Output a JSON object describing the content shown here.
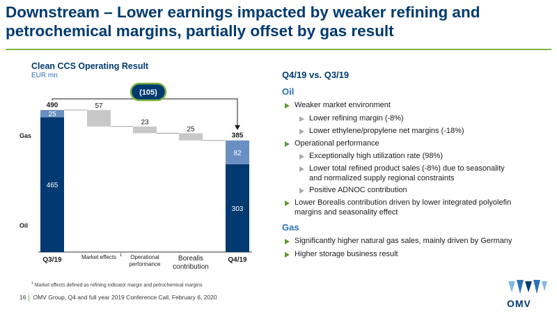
{
  "slide": {
    "title": "Downstream – Lower earnings impacted by weaker refining and petrochemical margins, partially offset by gas result"
  },
  "chart": {
    "title": "Clean CCS Operating Result",
    "unit": "EUR mn",
    "delta_label": "(105)",
    "start_total_label": "490",
    "end_total_label": "385",
    "side_label_gas": "Gas",
    "side_label_oil": "Oil",
    "colors": {
      "oil": "#003a70",
      "gas": "#6a8fc2",
      "delta": "#c8c8c8",
      "arrow": "#1a1a1a"
    }
  },
  "chart_data": {
    "type": "bar",
    "subtype": "waterfall",
    "title": "Clean CCS Operating Result",
    "ylabel": "EUR mn",
    "categories": [
      "Q3/19",
      "Market effects",
      "Operational performance",
      "Borealis contribution",
      "Q4/19"
    ],
    "category_sups": [
      "",
      "1",
      "",
      "",
      ""
    ],
    "totals": [
      {
        "category": "Q3/19",
        "oil": 465,
        "gas": 25,
        "total": 490
      },
      {
        "category": "Q4/19",
        "oil": 303,
        "gas": 82,
        "total": 385
      }
    ],
    "changes": [
      {
        "category": "Market effects",
        "value": -57,
        "label": "57"
      },
      {
        "category": "Operational performance",
        "value": -23,
        "label": "23"
      },
      {
        "category": "Borealis contribution",
        "value": -25,
        "label": "25"
      }
    ],
    "total_change": -105,
    "ylim": [
      0,
      490
    ]
  },
  "right": {
    "heading": "Q4/19 vs. Q3/19",
    "oil_label": "Oil",
    "gas_label": "Gas",
    "oil_bullets": [
      "Weaker market environment",
      "Lower refining margin (-8%)",
      "Lower ethylene/propylene net margins (-18%)",
      "Operational performance",
      "Exceptionally high utilization rate (98%)",
      "Lower total refined product sales (-8%) due to seasonality",
      "and normalized supply regional constraints",
      "Positive ADNOC contribution",
      "Lower Borealis contribution driven by lower integrated polyolefin",
      "margins and seasonality effect"
    ],
    "gas_bullets": [
      "Significantly higher natural gas sales, mainly driven by Germany",
      "Higher storage business result"
    ]
  },
  "footnote": {
    "sup": "1",
    "text": "Market effects defined as refining indicator margin and petrochemical margins"
  },
  "footer": {
    "page": "16",
    "text": "OMV Group, Q4 and full year 2019 Conference Call, February 6, 2020"
  },
  "logo": {
    "text": "OMV"
  }
}
